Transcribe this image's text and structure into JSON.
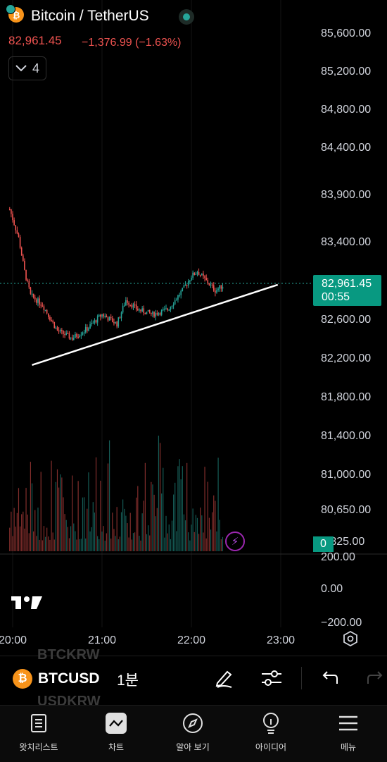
{
  "header": {
    "pair_title": "Bitcoin / TetherUS",
    "last_price": "82,961.45",
    "change": "−1,376.99 (−1.63%)",
    "indicator_count": "4",
    "base_icon": "bitcoin-icon",
    "quote_icon": "tether-icon"
  },
  "price_axis": {
    "labels": [
      "85,600.00",
      "85,200.00",
      "84,800.00",
      "84,400.00",
      "83,900.00",
      "83,400.00",
      "82,600.00",
      "82,200.00",
      "81,800.00",
      "81,400.00",
      "81,000.00",
      "80,650.00",
      "0,325.00",
      "200.00",
      "0.00",
      "−200.00"
    ]
  },
  "price_tag": {
    "price": "82,961.45",
    "countdown": "00:55"
  },
  "volume_tag": "0",
  "time_axis": {
    "labels": [
      "20:00",
      "21:00",
      "22:00",
      "23:00"
    ]
  },
  "colors": {
    "up": "#26a69a",
    "down": "#ef5350",
    "accent": "#089981",
    "background": "#000000",
    "text": "#d1d4dc"
  },
  "toolbar": {
    "symbol": "BTCUSD",
    "symbol_ghost_above": "BTCKRW",
    "symbol_ghost_below": "USDKRW",
    "interval": "1분",
    "draw_icon": "pen-icon",
    "settings_icon": "sliders-icon",
    "undo_icon": "undo-icon",
    "redo_icon": "redo-icon"
  },
  "nav": {
    "items": [
      {
        "label": "왓치리스트",
        "icon": "watchlist-icon"
      },
      {
        "label": "차트",
        "icon": "chart-icon"
      },
      {
        "label": "알아 보기",
        "icon": "compass-icon"
      },
      {
        "label": "아이디어",
        "icon": "lightbulb-icon"
      },
      {
        "label": "메뉴",
        "icon": "menu-icon"
      }
    ]
  },
  "chart_data": {
    "type": "candlestick",
    "interval": "1분",
    "x_labels": [
      "20:00",
      "21:00",
      "22:00",
      "23:00"
    ],
    "y_range": [
      80325,
      85600
    ],
    "last_price": 82961.45,
    "close_trend": [
      {
        "t": "19:58",
        "v": 83750
      },
      {
        "t": "20:04",
        "v": 83450
      },
      {
        "t": "20:08",
        "v": 83100
      },
      {
        "t": "20:12",
        "v": 82850
      },
      {
        "t": "20:16",
        "v": 82800
      },
      {
        "t": "20:20",
        "v": 82750
      },
      {
        "t": "20:30",
        "v": 82480
      },
      {
        "t": "20:40",
        "v": 82400
      },
      {
        "t": "20:50",
        "v": 82500
      },
      {
        "t": "21:00",
        "v": 82650
      },
      {
        "t": "21:10",
        "v": 82550
      },
      {
        "t": "21:16",
        "v": 82800
      },
      {
        "t": "21:24",
        "v": 82700
      },
      {
        "t": "21:34",
        "v": 82650
      },
      {
        "t": "21:44",
        "v": 82700
      },
      {
        "t": "21:54",
        "v": 82900
      },
      {
        "t": "22:00",
        "v": 83050
      },
      {
        "t": "22:04",
        "v": 83100
      },
      {
        "t": "22:10",
        "v": 83000
      },
      {
        "t": "22:16",
        "v": 82900
      },
      {
        "t": "22:22",
        "v": 82961.45
      }
    ],
    "trendline": [
      {
        "t": "20:13",
        "v": 82120
      },
      {
        "t": "22:58",
        "v": 82960
      }
    ],
    "volume_axis": [
      -200,
      0,
      200
    ]
  }
}
